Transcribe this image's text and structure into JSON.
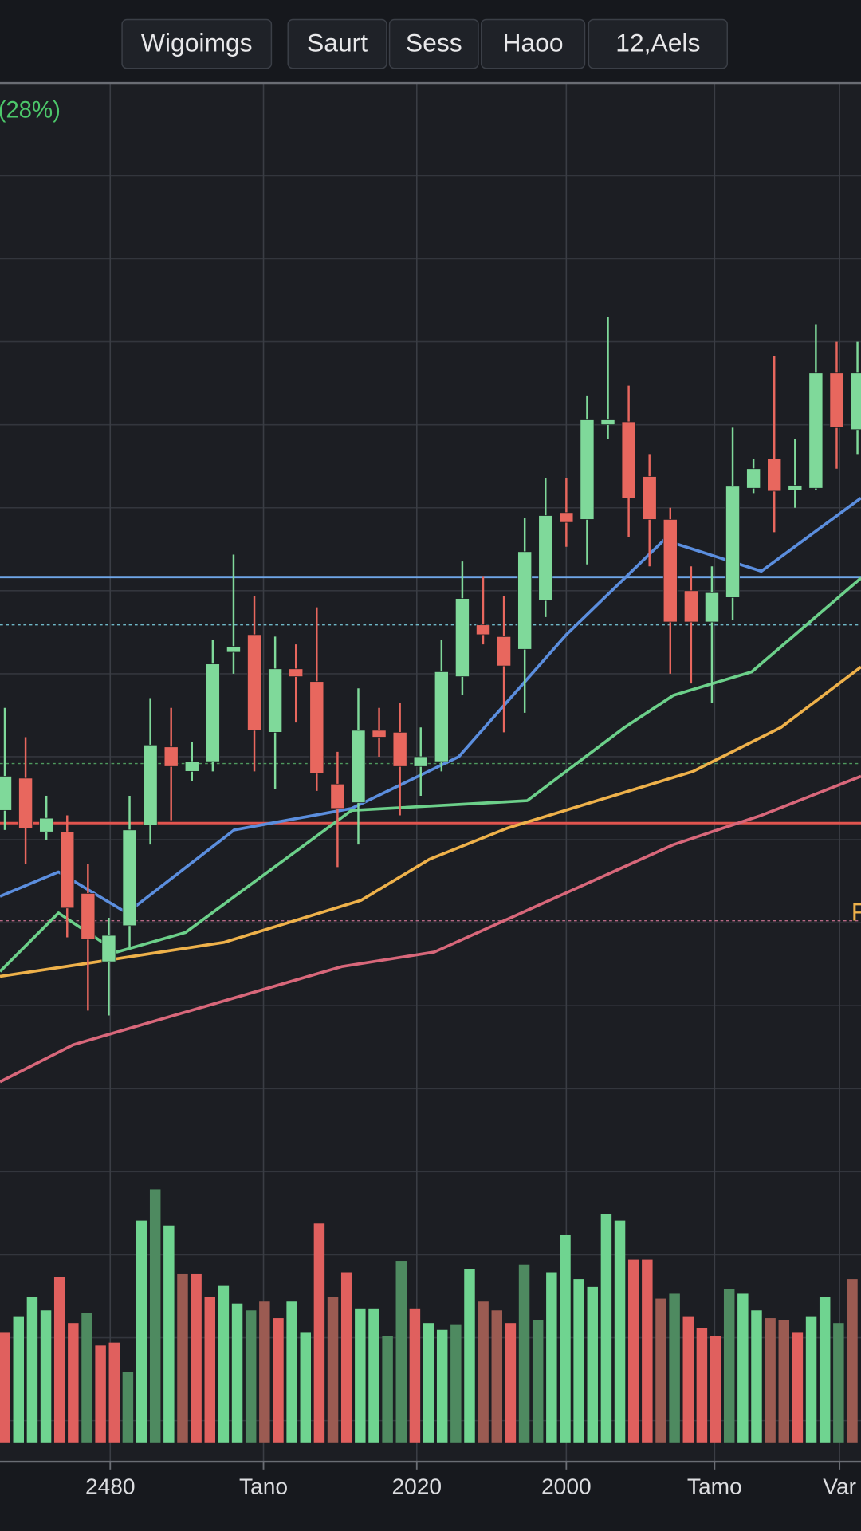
{
  "toolbar": {
    "buttons": [
      "Wigoimgs",
      "Saurt",
      "Sess",
      "Haoo",
      "12,Aels"
    ]
  },
  "chart_data": {
    "type": "candlestick",
    "change_label": "(28%)",
    "price_label": "F",
    "x": [
      0,
      1,
      2,
      3,
      4,
      5,
      6,
      7,
      8,
      9,
      10,
      11,
      12,
      13,
      14,
      15,
      16,
      17,
      18,
      19,
      20,
      21,
      22,
      23,
      24,
      25,
      26,
      27,
      28,
      29,
      30,
      31,
      32,
      33,
      34,
      35,
      36,
      37,
      38,
      39,
      40,
      41
    ],
    "open": [
      36.5,
      39.8,
      34.3,
      34.3,
      28,
      21,
      24.7,
      35,
      43,
      40.5,
      41.5,
      52.7,
      54.5,
      44.5,
      51,
      49.7,
      39.2,
      37.3,
      44.7,
      44.5,
      41,
      41.5,
      50.2,
      55.5,
      54.3,
      53,
      58,
      67,
      66.3,
      76,
      76.3,
      70.7,
      66.3,
      59,
      55.8,
      58.3,
      69.5,
      72.5,
      69.3,
      69.5,
      81.3,
      75.5
    ],
    "high": [
      47,
      44,
      38,
      36,
      31,
      25.5,
      38,
      48,
      47,
      43.5,
      54,
      62.7,
      58.5,
      54.3,
      53.5,
      57.3,
      42.5,
      49,
      47,
      47.5,
      45,
      54,
      62,
      60.5,
      58.5,
      66.5,
      70.5,
      70.5,
      79,
      87,
      80,
      73,
      67.5,
      61.5,
      61.5,
      75.7,
      72.5,
      83,
      74.5,
      86.3,
      84.5,
      84.5
    ],
    "low": [
      34.5,
      31,
      33.5,
      23.5,
      16,
      15.5,
      22.5,
      33,
      35.5,
      39.5,
      40.5,
      50.5,
      40.5,
      38.7,
      45.5,
      38.5,
      30.7,
      33,
      42,
      36,
      38,
      40.5,
      48.3,
      53.5,
      44.5,
      46.5,
      56.3,
      63.5,
      61.7,
      74.5,
      64.5,
      61.5,
      50.5,
      49.5,
      47.5,
      56,
      69,
      65,
      67.5,
      69.3,
      71.5,
      73
    ],
    "close": [
      40,
      34.7,
      35.7,
      26.5,
      23.3,
      23.7,
      34.5,
      43.2,
      41,
      41.5,
      51.5,
      53.3,
      44.7,
      51,
      50.2,
      40.3,
      36.7,
      44.7,
      44,
      41,
      42,
      50.7,
      58.2,
      54.5,
      51.3,
      63,
      66.7,
      66,
      76.5,
      76.5,
      68.5,
      66.3,
      55.8,
      55.8,
      58.8,
      69.7,
      71.5,
      69.2,
      69.8,
      81.3,
      75.7,
      81.3
    ],
    "up_color": "#7fd99a",
    "down_color": "#e8675e",
    "xlim": [
      -0.23,
      41.17
    ],
    "ylim": [
      0,
      111
    ],
    "grid": true,
    "xticks": [
      {
        "value": 5.07,
        "label": "2480"
      },
      {
        "value": 12.44,
        "label": "Tano"
      },
      {
        "value": 19.81,
        "label": "2020"
      },
      {
        "value": 27,
        "label": "2000"
      },
      {
        "value": 34.13,
        "label": "Tamo"
      },
      {
        "value": 40.14,
        "label": "Var"
      }
    ],
    "lines": [
      {
        "color": "#5b8ede",
        "x": [
          -0.23,
          2.58,
          5.87,
          11.03,
          16.67,
          21.83,
          27,
          31.7,
          36.38,
          41.17
        ],
        "values": [
          27.7,
          30.2,
          26,
          34.5,
          36.7,
          42,
          54.5,
          64.2,
          61,
          68.5
        ]
      },
      {
        "color": "#6cd08a",
        "x": [
          -0.23,
          2.58,
          5.4,
          8.69,
          16.67,
          25.12,
          29.8,
          32.16,
          35.92,
          41.17
        ],
        "values": [
          20,
          26,
          22,
          24,
          36.5,
          37.5,
          45,
          48.3,
          50.7,
          60.3
        ]
      },
      {
        "color": "#eeb14a",
        "x": [
          -0.23,
          4.46,
          10.56,
          17.14,
          20.42,
          24.18,
          33.1,
          37.32,
          41.17
        ],
        "values": [
          19.5,
          21,
          23,
          27.3,
          31.5,
          34.7,
          40.5,
          45,
          51.2
        ]
      },
      {
        "color": "#d8677a",
        "x": [
          -0.23,
          3.29,
          16.2,
          20.66,
          32.16,
          36.38,
          41.17
        ],
        "values": [
          8.7,
          12.5,
          20.5,
          22,
          33,
          36,
          40
        ]
      }
    ],
    "hlines": [
      {
        "value": 60.4,
        "color": "#6fa6e8",
        "style": "solid"
      },
      {
        "value": 55.5,
        "color": "#6fb8c8",
        "style": "dashed"
      },
      {
        "value": 41.3,
        "color": "#4f9a5e",
        "style": "dashed"
      },
      {
        "value": 35.2,
        "color": "#e2554f",
        "style": "solid"
      },
      {
        "value": 25.2,
        "color": "#b86a86",
        "style": "dashed"
      }
    ],
    "volume": {
      "ylim": [
        0,
        28.3
      ],
      "values": [
        11.3,
        13,
        15,
        13.6,
        17,
        12.3,
        13.3,
        10,
        10.3,
        7.3,
        22.8,
        26,
        22.3,
        17.3,
        17.3,
        15,
        16.1,
        14.3,
        13.6,
        14.5,
        12.8,
        14.5,
        11.3,
        22.5,
        15,
        17.5,
        13.8,
        13.8,
        11,
        18.6,
        13.8,
        12.3,
        11.6,
        12.1,
        17.8,
        14.5,
        13.6,
        12.3,
        18.3,
        12.6,
        17.5,
        21.3,
        16.8,
        16,
        23.5,
        22.8,
        18.8,
        18.8,
        14.8,
        15.3,
        13,
        11.8,
        11,
        15.8,
        15.3,
        13.6,
        12.8,
        12.6,
        11.3,
        13,
        15,
        12.3,
        16.8
      ],
      "colors": [
        "#e0605e",
        "#6fd490",
        "#6fd490",
        "#6fd490",
        "#e0605e",
        "#e0605e",
        "#4e8a60",
        "#e0605e",
        "#e0605e",
        "#4e8a60",
        "#6fd490",
        "#4e8a60",
        "#6fd490",
        "#9b5b52",
        "#e0605e",
        "#e0605e",
        "#6fd490",
        "#6fd490",
        "#4e8a60",
        "#9b5b52",
        "#e0605e",
        "#6fd490",
        "#6fd490",
        "#e0605e",
        "#9b5b52",
        "#e0605e",
        "#6fd490",
        "#6fd490",
        "#4e8a60",
        "#4e8a60",
        "#e0605e",
        "#6fd490",
        "#6fd490",
        "#4e8a60",
        "#6fd490",
        "#9b5b52",
        "#9b5b52",
        "#e0605e",
        "#4e8a60",
        "#4e8a60",
        "#6fd490",
        "#6fd490",
        "#6fd490",
        "#6fd490",
        "#6fd490",
        "#6fd490",
        "#e0605e",
        "#e0605e",
        "#9b5b52",
        "#4e8a60",
        "#e0605e",
        "#e0605e",
        "#e0605e",
        "#4e8a60",
        "#6fd490",
        "#6fd490",
        "#9b5b52",
        "#9b5b52",
        "#e0605e",
        "#6fd490",
        "#6fd490",
        "#4e8a60",
        "#9b5b52"
      ]
    }
  }
}
